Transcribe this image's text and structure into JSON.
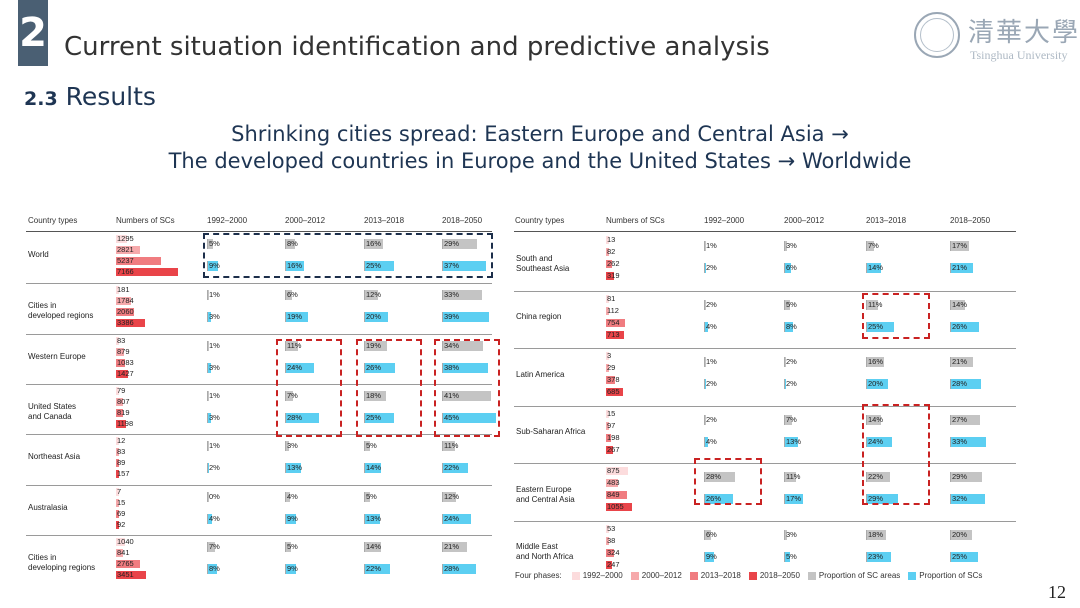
{
  "header": {
    "section_number": "2",
    "section_title": "Current situation identification and predictive analysis",
    "subsection_number": "2.3",
    "subsection_title": "Results",
    "headline_line1": "Shrinking cities spread: Eastern Europe and Central Asia →",
    "headline_line2": "The developed countries in Europe and the United States → Worldwide"
  },
  "logo": {
    "cn": "清華大學",
    "en": "Tsinghua University"
  },
  "table_headers": {
    "type": "Country types",
    "count": "Numbers of SCs",
    "p1": "1992–2000",
    "p2": "2000–2012",
    "p3": "2013–2018",
    "p4": "2018–2050"
  },
  "left_groups": [
    {
      "name": "World",
      "counts": [
        "1295",
        "2821",
        "5237",
        "7166"
      ],
      "area": [
        "5%",
        "8%",
        "16%",
        "29%"
      ],
      "scs": [
        "9%",
        "16%",
        "25%",
        "37%"
      ]
    },
    {
      "name": "Cities in\ndeveloped regions",
      "counts": [
        "181",
        "1784",
        "2060",
        "3386"
      ],
      "area": [
        "1%",
        "6%",
        "12%",
        "33%"
      ],
      "scs": [
        "3%",
        "19%",
        "20%",
        "39%"
      ]
    },
    {
      "name": "Western Europe",
      "counts": [
        "83",
        "879",
        "1083",
        "1427"
      ],
      "area": [
        "1%",
        "11%",
        "19%",
        "34%"
      ],
      "scs": [
        "3%",
        "24%",
        "26%",
        "38%"
      ]
    },
    {
      "name": "United States\nand Canada",
      "counts": [
        "79",
        "807",
        "819",
        "1198"
      ],
      "area": [
        "1%",
        "7%",
        "18%",
        "41%"
      ],
      "scs": [
        "3%",
        "28%",
        "25%",
        "45%"
      ]
    },
    {
      "name": "Northeast Asia",
      "counts": [
        "12",
        "83",
        "89",
        "157"
      ],
      "area": [
        "1%",
        "3%",
        "5%",
        "11%"
      ],
      "scs": [
        "2%",
        "13%",
        "14%",
        "22%"
      ]
    },
    {
      "name": "Australasia",
      "counts": [
        "7",
        "15",
        "69",
        "92"
      ],
      "area": [
        "0%",
        "4%",
        "5%",
        "12%"
      ],
      "scs": [
        "4%",
        "9%",
        "13%",
        "24%"
      ]
    },
    {
      "name": "Cities in\ndeveloping regions",
      "counts": [
        "1040",
        "841",
        "2765",
        "3451"
      ],
      "area": [
        "7%",
        "5%",
        "14%",
        "21%"
      ],
      "scs": [
        "8%",
        "9%",
        "22%",
        "28%"
      ]
    }
  ],
  "right_groups": [
    {
      "name": "South and\nSoutheast Asia",
      "counts": [
        "13",
        "82",
        "262",
        "319"
      ],
      "area": [
        "1%",
        "3%",
        "7%",
        "17%"
      ],
      "scs": [
        "2%",
        "6%",
        "14%",
        "21%"
      ]
    },
    {
      "name": "China region",
      "counts": [
        "81",
        "112",
        "754",
        "713"
      ],
      "area": [
        "2%",
        "5%",
        "11%",
        "14%"
      ],
      "scs": [
        "4%",
        "8%",
        "25%",
        "26%"
      ]
    },
    {
      "name": "Latin America",
      "counts": [
        "3",
        "29",
        "378",
        "685"
      ],
      "area": [
        "1%",
        "2%",
        "16%",
        "21%"
      ],
      "scs": [
        "2%",
        "2%",
        "20%",
        "28%"
      ]
    },
    {
      "name": "Sub-Saharan Africa",
      "counts": [
        "15",
        "97",
        "198",
        "267"
      ],
      "area": [
        "2%",
        "7%",
        "14%",
        "27%"
      ],
      "scs": [
        "4%",
        "13%",
        "24%",
        "33%"
      ]
    },
    {
      "name": "Eastern Europe\nand Central Asia",
      "counts": [
        "875",
        "483",
        "849",
        "1055"
      ],
      "area": [
        "28%",
        "11%",
        "22%",
        "29%"
      ],
      "scs": [
        "26%",
        "17%",
        "29%",
        "32%"
      ]
    },
    {
      "name": "Middle East\nand North Africa",
      "counts": [
        "53",
        "38",
        "324",
        "247"
      ],
      "area": [
        "6%",
        "3%",
        "18%",
        "20%"
      ],
      "scs": [
        "9%",
        "5%",
        "23%",
        "25%"
      ]
    }
  ],
  "legend": {
    "prefix": "Four phases:",
    "items": [
      "1992–2000",
      "2000–2012",
      "2013–2018",
      "2018–2050",
      "Proportion of SC areas",
      "Proportion of SCs"
    ],
    "colors": [
      "#fcdcdd",
      "#f6a9ab",
      "#f07c80",
      "#e94449",
      "#c4c4c4",
      "#5ccff2"
    ]
  },
  "page_number": "12"
}
